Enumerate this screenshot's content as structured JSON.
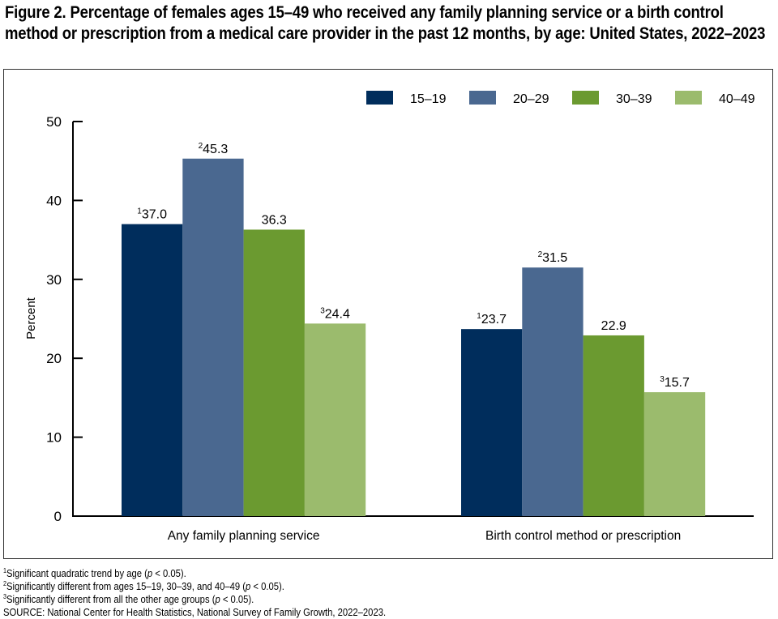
{
  "title": "Figure 2. Percentage of females ages 15–49 who received any family planning service or a birth control method or prescription from a medical care provider in the past 12 months, by age: United States, 2022–2023",
  "chart_data": {
    "type": "bar",
    "title": "Figure 2. Percentage of females ages 15–49 who received any family planning service or a birth control method or prescription from a medical care provider in the past 12 months, by age: United States, 2022–2023",
    "xlabel": "",
    "ylabel": "Percent",
    "ylim": [
      0,
      50
    ],
    "yticks": [
      0,
      10,
      20,
      30,
      40,
      50
    ],
    "grid": false,
    "legend_position": "top-right",
    "categories": [
      "Any family planning service",
      "Birth control method or prescription"
    ],
    "series": [
      {
        "name": "15–19",
        "color": "#002D5C",
        "values": [
          37.0,
          23.7
        ],
        "labels": [
          {
            "sup": "1",
            "text": "37.0"
          },
          {
            "sup": "1",
            "text": "23.7"
          }
        ]
      },
      {
        "name": "20–29",
        "color": "#4A6890",
        "values": [
          45.3,
          31.5
        ],
        "labels": [
          {
            "sup": "2",
            "text": "45.3"
          },
          {
            "sup": "2",
            "text": "31.5"
          }
        ]
      },
      {
        "name": "30–39",
        "color": "#6B9A30",
        "values": [
          36.3,
          22.9
        ],
        "labels": [
          {
            "sup": "",
            "text": "36.3"
          },
          {
            "sup": "",
            "text": "22.9"
          }
        ]
      },
      {
        "name": "40–49",
        "color": "#9BBB6D",
        "values": [
          24.4,
          15.7
        ],
        "labels": [
          {
            "sup": "3",
            "text": "24.4"
          },
          {
            "sup": "3",
            "text": "15.7"
          }
        ]
      }
    ]
  },
  "footnotes": [
    {
      "sup": "1",
      "before": "Significant quadratic trend by age (",
      "italic": "p",
      "after": " < 0.05)."
    },
    {
      "sup": "2",
      "before": "Significantly different from ages 15–19, 30–39, and 40–49 (",
      "italic": "p",
      "after": " < 0.05)."
    },
    {
      "sup": "3",
      "before": "Significantly different from all the other age groups (",
      "italic": "p",
      "after": " < 0.05)."
    }
  ],
  "source": "SOURCE: National Center for Health Statistics, National Survey of Family Growth, 2022–2023."
}
